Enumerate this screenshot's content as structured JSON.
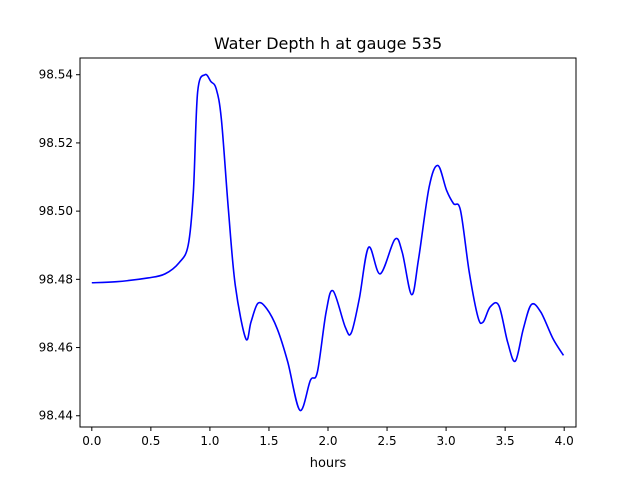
{
  "chart_data": {
    "type": "line",
    "title": "Water Depth h at gauge 535",
    "xlabel": "hours",
    "ylabel": "",
    "xlim": [
      -0.1,
      4.1
    ],
    "ylim": [
      98.4367,
      98.5449
    ],
    "xticks": [
      "0.0",
      "0.5",
      "1.0",
      "1.5",
      "2.0",
      "2.5",
      "3.0",
      "3.5",
      "4.0"
    ],
    "yticks": [
      "98.44",
      "98.46",
      "98.48",
      "98.50",
      "98.52",
      "98.54"
    ],
    "grid": false,
    "series": [
      {
        "name": "h",
        "color": "#0000ff",
        "x": [
          0.0,
          0.21,
          0.476,
          0.62,
          0.74,
          0.816,
          0.86,
          0.896,
          0.958,
          1.008,
          1.053,
          1.097,
          1.156,
          1.215,
          1.304,
          1.348,
          1.407,
          1.481,
          1.57,
          1.659,
          1.762,
          1.851,
          1.91,
          1.984,
          2.043,
          2.146,
          2.197,
          2.265,
          2.344,
          2.442,
          2.566,
          2.628,
          2.708,
          2.767,
          2.856,
          2.93,
          3.004,
          3.063,
          3.122,
          3.196,
          3.27,
          3.314,
          3.373,
          3.447,
          3.521,
          3.586,
          3.654,
          3.722,
          3.802,
          3.905,
          3.994
        ],
        "y": [
          98.479,
          98.4793,
          98.4804,
          98.4816,
          98.4849,
          98.49,
          98.5056,
          98.5349,
          98.54,
          98.538,
          98.5359,
          98.527,
          98.5007,
          98.4782,
          98.4626,
          98.4675,
          98.473,
          98.4714,
          98.4655,
          98.4558,
          98.4416,
          98.4504,
          98.4528,
          98.4704,
          98.4766,
          98.466,
          98.4643,
          98.4743,
          98.4894,
          98.4816,
          98.4917,
          98.488,
          98.4755,
          98.486,
          98.507,
          98.5134,
          98.5061,
          98.5022,
          98.5002,
          98.4821,
          98.4689,
          98.4675,
          98.4719,
          98.4723,
          98.4616,
          98.456,
          98.4655,
          98.4726,
          98.4704,
          98.4626,
          98.4577
        ]
      }
    ]
  }
}
